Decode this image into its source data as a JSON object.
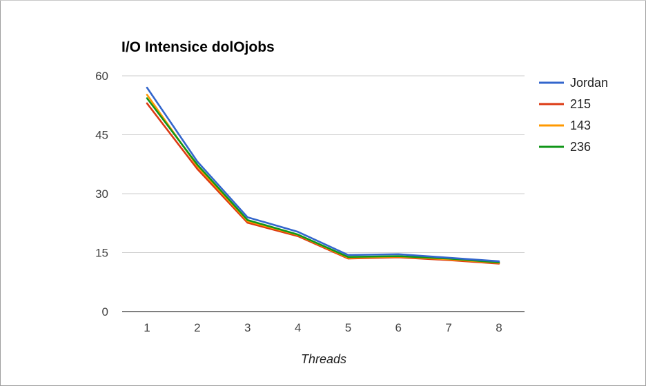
{
  "chart_data": {
    "type": "line",
    "title": "I/O Intensice dolOjobs",
    "xlabel": "Threads",
    "ylabel": "",
    "x": [
      1,
      2,
      3,
      4,
      5,
      6,
      7,
      8
    ],
    "x_tick_labels": [
      "1",
      "2",
      "3",
      "4",
      "5",
      "6",
      "7",
      "8"
    ],
    "ylim": [
      0,
      60
    ],
    "y_ticks": [
      0,
      15,
      30,
      45,
      60
    ],
    "y_tick_labels": [
      "0",
      "15",
      "30",
      "45",
      "60"
    ],
    "grid": true,
    "legend_position": "right",
    "series": [
      {
        "name": "Jordan",
        "color": "#3366cc",
        "values": [
          57,
          38.2,
          24,
          20.3,
          14.4,
          14.6,
          13.7,
          12.8
        ]
      },
      {
        "name": "215",
        "color": "#dc3912",
        "values": [
          53,
          36.3,
          22.6,
          19.2,
          13.5,
          13.8,
          13.1,
          12.2
        ]
      },
      {
        "name": "143",
        "color": "#ff9900",
        "values": [
          55.2,
          37,
          23,
          19.5,
          13.7,
          14,
          13.3,
          12.4
        ]
      },
      {
        "name": "236",
        "color": "#109618",
        "values": [
          54.3,
          37.4,
          23.3,
          19.6,
          13.9,
          14.1,
          13.5,
          12.5
        ]
      }
    ]
  }
}
